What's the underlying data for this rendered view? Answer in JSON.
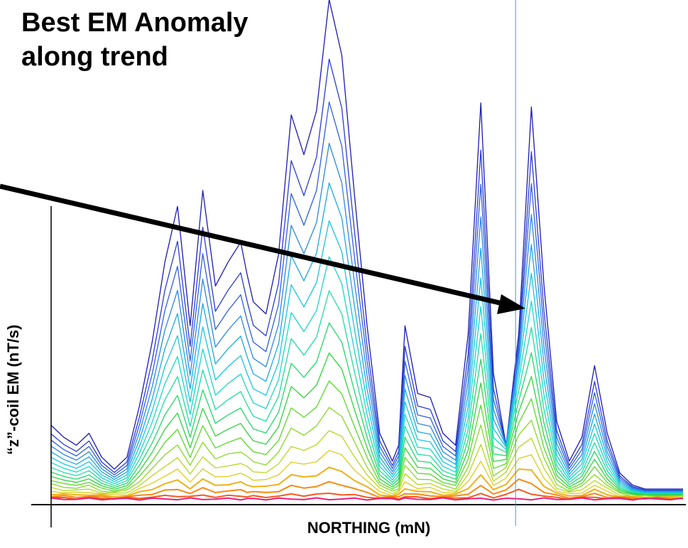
{
  "annotation": {
    "text": "Best EM Anomaly along trend",
    "arrow_target": "best EM anomaly peak"
  },
  "chart_data": {
    "type": "line",
    "title": "",
    "xlabel": "NORTHING (mN)",
    "ylabel": "“z”-coil EM (nT/s)",
    "grid": false,
    "legend": "none",
    "xlim": [
      0,
      100
    ],
    "ylim": [
      0,
      100
    ],
    "channels": 18,
    "colors": [
      "#1a1ab5",
      "#2a3dd0",
      "#2f5fdc",
      "#2a88e0",
      "#1aa8e4",
      "#18c4e0",
      "#19d6c8",
      "#1ddca0",
      "#22d86a",
      "#2ed43a",
      "#59d82a",
      "#8ad828",
      "#b8d81e",
      "#dccc1c",
      "#f0b018",
      "#f58a14",
      "#f25a20",
      "#e8207a"
    ],
    "profile": {
      "x": [
        0,
        2,
        4,
        6,
        8,
        10,
        12,
        14,
        16,
        18,
        20,
        22,
        24,
        26,
        28,
        30,
        31,
        32,
        34,
        36,
        38,
        40,
        42,
        44,
        46,
        48,
        50,
        52,
        54,
        55,
        56,
        58,
        60,
        62,
        64,
        66,
        68,
        70,
        72,
        74,
        76,
        78,
        80,
        82,
        84,
        86,
        88,
        90,
        92,
        94,
        96,
        98,
        100
      ],
      "y": [
        17,
        14,
        12,
        15,
        9,
        6,
        9,
        22,
        38,
        58,
        72,
        42,
        76,
        52,
        58,
        63,
        55,
        48,
        45,
        60,
        95,
        85,
        96,
        124,
        110,
        75,
        42,
        15,
        8,
        12,
        42,
        25,
        24,
        15,
        12,
        40,
        98,
        30,
        12,
        40,
        97,
        52,
        18,
        8,
        14,
        32,
        15,
        5,
        2,
        1,
        1,
        1,
        1
      ]
    },
    "best_anomaly_x": 73.5
  }
}
